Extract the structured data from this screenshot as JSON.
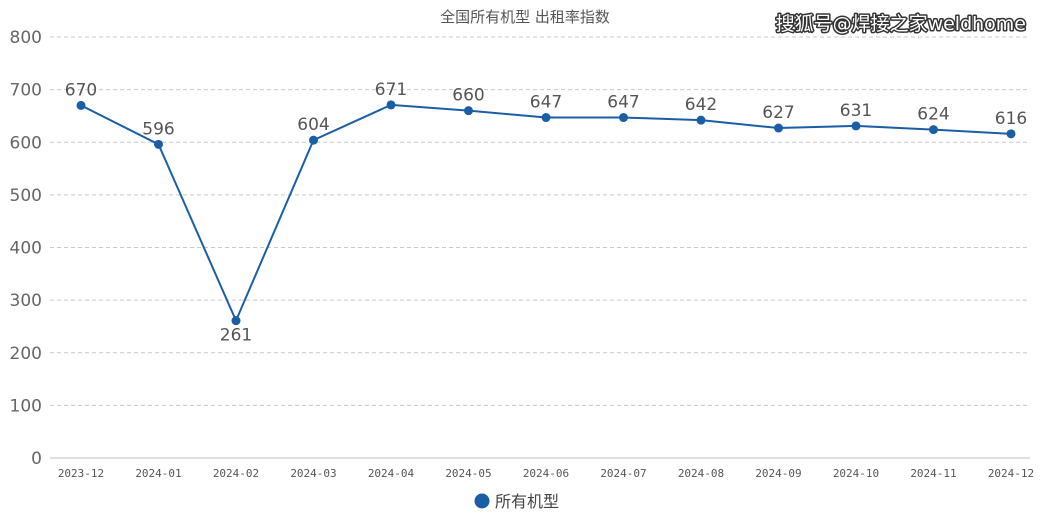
{
  "title": "全国所有机型  出租率指数",
  "watermark": "搜狐号@焊接之家weldhome",
  "colors": {
    "series": "#1a5ea6",
    "grid": "#c8c8c8"
  },
  "legend": {
    "position": "bottom-center",
    "icon": "circle-marker-icon"
  },
  "chart_data": {
    "type": "line",
    "title": "全国所有机型  出租率指数",
    "xlabel": "",
    "ylabel": "",
    "categories": [
      "2023-12",
      "2024-01",
      "2024-02",
      "2024-03",
      "2024-04",
      "2024-05",
      "2024-06",
      "2024-07",
      "2024-08",
      "2024-09",
      "2024-10",
      "2024-11",
      "2024-12"
    ],
    "series": [
      {
        "name": "所有机型",
        "values": [
          670,
          596,
          261,
          604,
          671,
          660,
          647,
          647,
          642,
          627,
          631,
          624,
          616
        ]
      }
    ],
    "ylim": [
      0,
      800
    ],
    "yticks": [
      0,
      100,
      200,
      300,
      400,
      500,
      600,
      700,
      800
    ],
    "grid": "horizontal-dashed",
    "data_labels": true,
    "legend_position": "bottom"
  }
}
